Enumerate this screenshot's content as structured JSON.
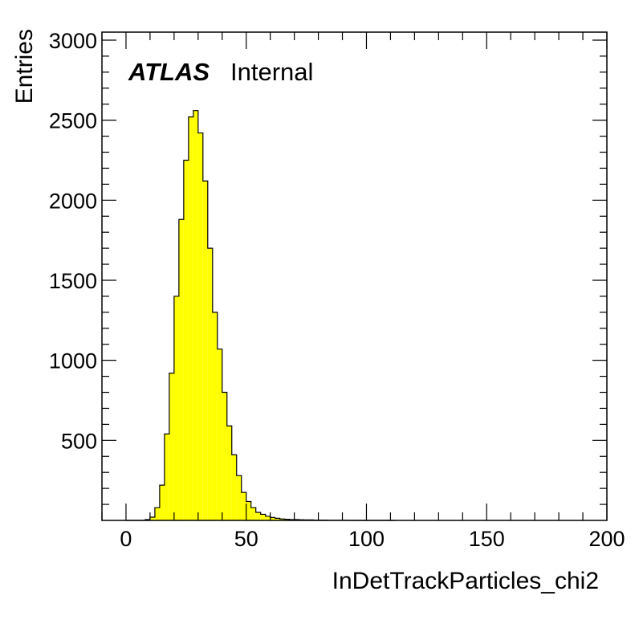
{
  "chart_data": {
    "type": "bar",
    "histogram": true,
    "xlabel": "InDetTrackParticles_chi2",
    "ylabel": "Entries",
    "xlim": [
      -10,
      200
    ],
    "ylim": [
      0,
      3050
    ],
    "x_ticks": [
      0,
      50,
      100,
      150,
      200
    ],
    "x_tick_labels": [
      "0",
      "50",
      "100",
      "150",
      "200"
    ],
    "y_ticks": [
      500,
      1000,
      1500,
      2000,
      2500,
      3000
    ],
    "y_tick_labels": [
      "500",
      "1000",
      "1500",
      "2000",
      "2500",
      "3000"
    ],
    "fill_color": "#ffff00",
    "line_color": "#000000",
    "grid": false,
    "bins": {
      "start": 0,
      "width": 2,
      "values": [
        0,
        0,
        0,
        0,
        5,
        20,
        80,
        220,
        540,
        920,
        1400,
        1880,
        2250,
        2520,
        2560,
        2420,
        2120,
        1700,
        1300,
        1070,
        800,
        590,
        410,
        280,
        175,
        118,
        80,
        50,
        38,
        26,
        18,
        13,
        9,
        7,
        5,
        5,
        4,
        3,
        3,
        2,
        2,
        2,
        1,
        1,
        1,
        1,
        0,
        0,
        0,
        0,
        0,
        0,
        0,
        0,
        0,
        0
      ]
    }
  },
  "annotation": {
    "atlas": "ATLAS",
    "status": "Internal"
  }
}
